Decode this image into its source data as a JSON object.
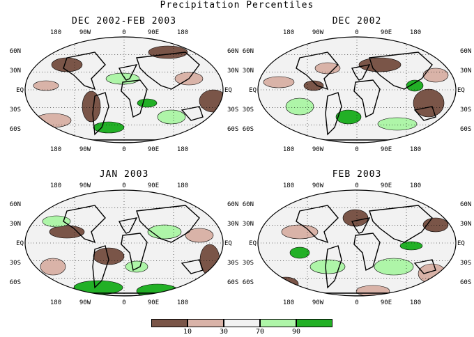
{
  "title": "Precipitation Percentiles",
  "panels": [
    {
      "title": "DEC 2002-FEB 2003"
    },
    {
      "title": "DEC 2002"
    },
    {
      "title": "JAN 2003"
    },
    {
      "title": "FEB 2003"
    }
  ],
  "lon_labels": [
    "180",
    "90W",
    "0",
    "90E",
    "180"
  ],
  "lat_labels_left": [
    "60N",
    "30N",
    "EQ",
    "30S",
    "60S"
  ],
  "lat_labels_right": [
    "60N",
    "30N",
    "EQ",
    "30S",
    "60S"
  ],
  "legend": {
    "colors": [
      "#7a5548",
      "#d9b3a8",
      "#f2f2f2",
      "#aef5a8",
      "#22b026"
    ],
    "ticks": [
      "10",
      "30",
      "70",
      "90"
    ]
  }
}
